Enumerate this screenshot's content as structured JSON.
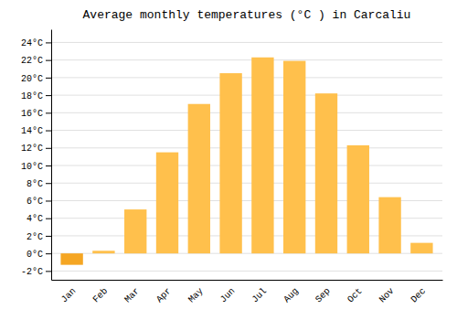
{
  "chart_data": {
    "type": "bar",
    "title": "Average monthly temperatures (°C ) in Carcaliu",
    "categories": [
      "Jan",
      "Feb",
      "Mar",
      "Apr",
      "May",
      "Jun",
      "Jul",
      "Aug",
      "Sep",
      "Oct",
      "Nov",
      "Dec"
    ],
    "values": [
      -1.3,
      0.3,
      5.0,
      11.5,
      17.0,
      20.5,
      22.3,
      21.9,
      18.2,
      12.3,
      6.4,
      1.2
    ],
    "colors": [
      "#F5A623",
      "#FFC04C",
      "#FFC04C",
      "#FFC04C",
      "#FFC04C",
      "#FFC04C",
      "#FFC04C",
      "#FFC04C",
      "#FFC04C",
      "#FFC04C",
      "#FFC04C",
      "#FFC04C"
    ],
    "ylim": [
      -3,
      25.5
    ],
    "yticks": [
      {
        "value": -2,
        "label": "-2°C"
      },
      {
        "value": 0,
        "label": "0°C"
      },
      {
        "value": 2,
        "label": "2°C"
      },
      {
        "value": 4,
        "label": "4°C"
      },
      {
        "value": 6,
        "label": "6°C"
      },
      {
        "value": 8,
        "label": "8°C"
      },
      {
        "value": 10,
        "label": "10°C"
      },
      {
        "value": 12,
        "label": "12°C"
      },
      {
        "value": 14,
        "label": "14°C"
      },
      {
        "value": 16,
        "label": "16°C"
      },
      {
        "value": 18,
        "label": "18°C"
      },
      {
        "value": 20,
        "label": "20°C"
      },
      {
        "value": 22,
        "label": "22°C"
      },
      {
        "value": 24,
        "label": "24°C"
      }
    ],
    "grid": true
  }
}
